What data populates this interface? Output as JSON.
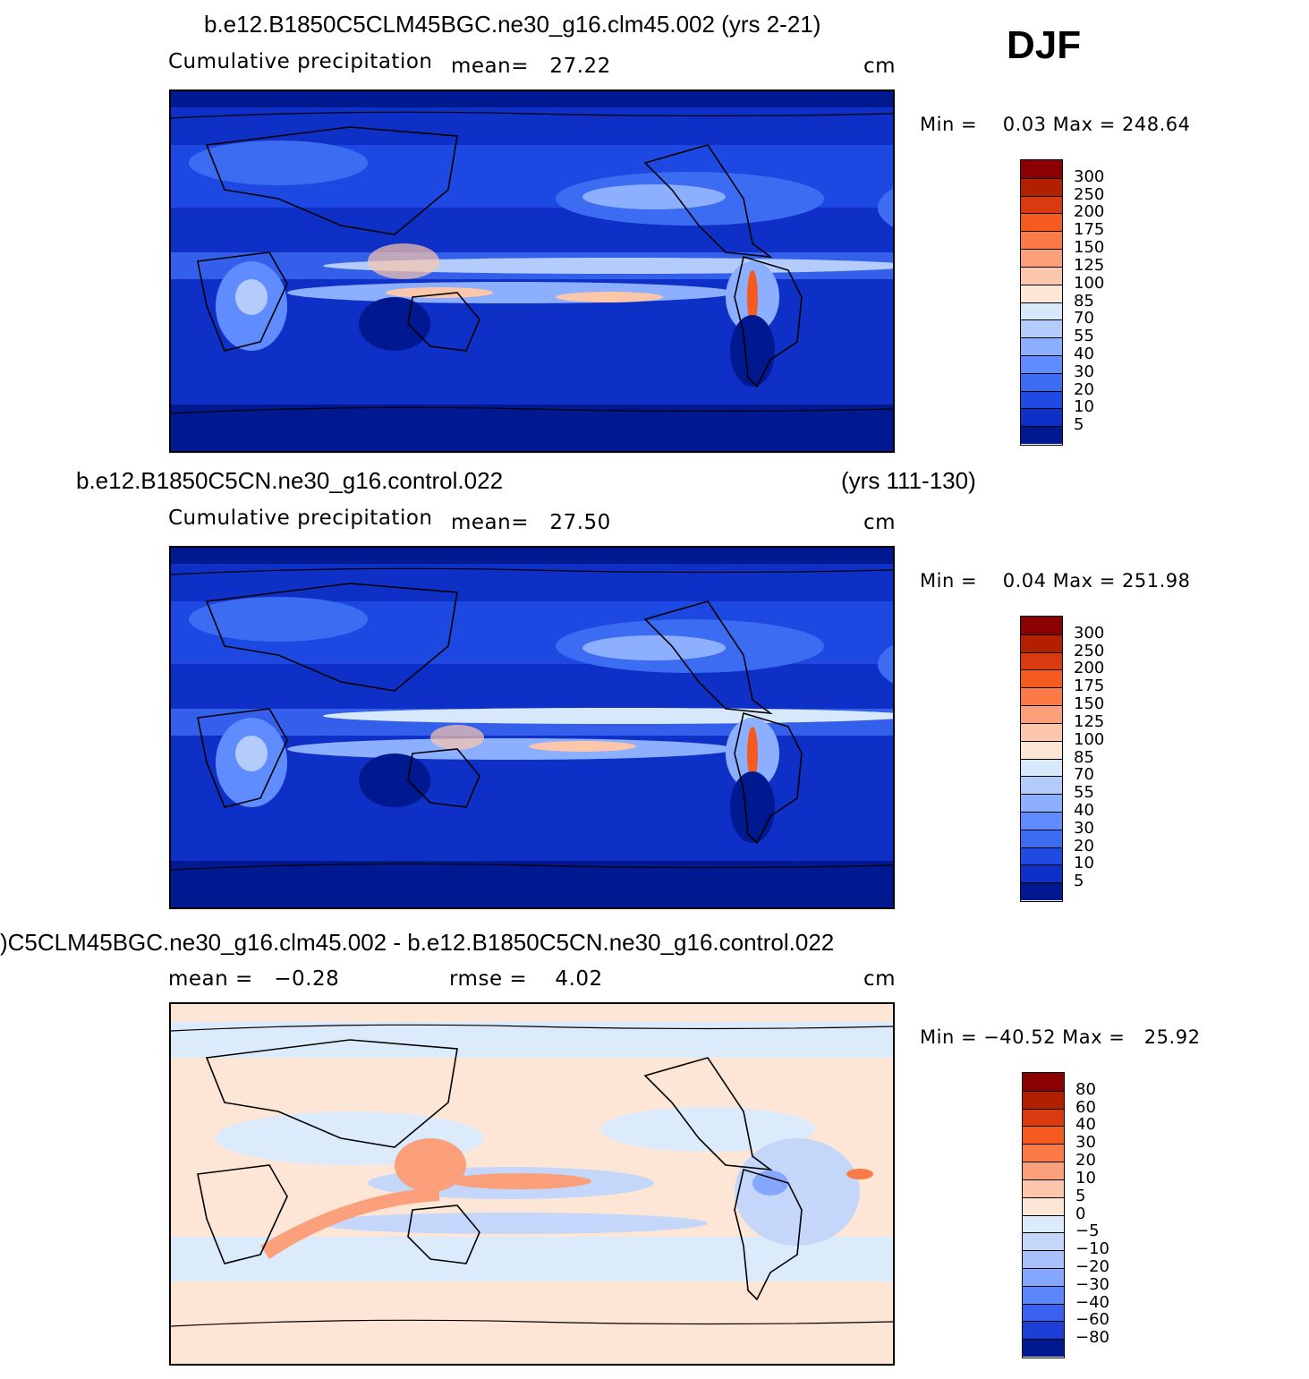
{
  "season": "DJF",
  "panels": [
    {
      "title": "b.e12.B1850C5CLM45BGC.ne30_g16.clm45.002 (yrs 2-21)",
      "title_right": "",
      "variable": "Cumulative precipitation",
      "stat1": "mean=   27.22",
      "stat2": "",
      "units": "cm",
      "minmax": "Min =    0.03 Max = 248.64",
      "colorbar_labels": [
        "300",
        "250",
        "200",
        "175",
        "150",
        "125",
        "100",
        "85",
        "70",
        "55",
        "40",
        "30",
        "20",
        "10",
        "5"
      ],
      "colors": [
        "#8b0000",
        "#b22000",
        "#d93a10",
        "#f55a1f",
        "#fb7a45",
        "#fba07a",
        "#fcc6aa",
        "#fde6d6",
        "#d8e8fb",
        "#b3ccfb",
        "#8cafff",
        "#5f8cff",
        "#3c6cf2",
        "#1f4be3",
        "#0f30c6",
        "#001890"
      ]
    },
    {
      "title": "b.e12.B1850C5CN.ne30_g16.control.022",
      "title_right": "(yrs 111-130)",
      "variable": "Cumulative precipitation",
      "stat1": "mean=   27.50",
      "stat2": "",
      "units": "cm",
      "minmax": "Min =    0.04 Max = 251.98",
      "colorbar_labels": [
        "300",
        "250",
        "200",
        "175",
        "150",
        "125",
        "100",
        "85",
        "70",
        "55",
        "40",
        "30",
        "20",
        "10",
        "5"
      ],
      "colors": [
        "#8b0000",
        "#b22000",
        "#d93a10",
        "#f55a1f",
        "#fb7a45",
        "#fba07a",
        "#fcc6aa",
        "#fde6d6",
        "#d8e8fb",
        "#b3ccfb",
        "#8cafff",
        "#5f8cff",
        "#3c6cf2",
        "#1f4be3",
        "#0f30c6",
        "#001890"
      ]
    },
    {
      "title": ")C5CLM45BGC.ne30_g16.clm45.002 - b.e12.B1850C5CN.ne30_g16.control.022",
      "title_right": "",
      "variable": "",
      "stat1": "mean =   −0.28",
      "stat2": "rmse =    4.02",
      "units": "cm",
      "minmax": "Min = −40.52 Max =   25.92",
      "colorbar_labels": [
        "80",
        "60",
        "40",
        "30",
        "20",
        "10",
        "5",
        "0",
        "−5",
        "−10",
        "−20",
        "−30",
        "−40",
        "−60",
        "−80"
      ],
      "colors": [
        "#8b0000",
        "#b22000",
        "#d93a10",
        "#f55a1f",
        "#fb7a45",
        "#fba07a",
        "#fcc6aa",
        "#fde6d6",
        "#dcebfc",
        "#c4d7fb",
        "#a8c1fb",
        "#86a7ff",
        "#5c86fb",
        "#3a62ee",
        "#1c3fd6",
        "#001890"
      ]
    }
  ]
}
